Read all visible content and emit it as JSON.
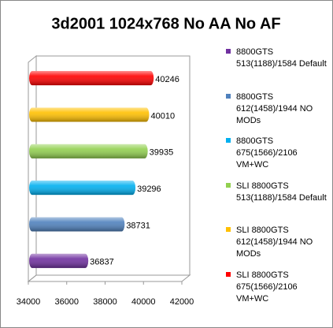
{
  "chart_data": {
    "type": "bar",
    "orientation": "horizontal",
    "title": "3d2001 1024x768 No AA No AF",
    "series": [
      {
        "name": "8800GTS 513(1188)/1584 Default",
        "color": "#7030a0",
        "values": [
          36837
        ]
      },
      {
        "name": "8800GTS 612(1458)/1944 NO MODs",
        "color": "#4f81bd",
        "values": [
          38731
        ]
      },
      {
        "name": "8800GTS 675(1566)/2106 VM+WC",
        "color": "#00b0f0",
        "values": [
          39296
        ]
      },
      {
        "name": "SLI 8800GTS 513(1188)/1584 Default",
        "color": "#92d050",
        "values": [
          39935
        ]
      },
      {
        "name": "SLI 8800GTS 612(1458)/1944 NO MODs",
        "color": "#ffc000",
        "values": [
          40010
        ]
      },
      {
        "name": "SLI 8800GTS 675(1566)/2106 VM+WC",
        "color": "#ff0000",
        "values": [
          40246
        ]
      }
    ],
    "xlim": [
      34000,
      42000
    ],
    "xticks": [
      34000,
      36000,
      38000,
      40000,
      42000
    ],
    "legend": "right"
  }
}
